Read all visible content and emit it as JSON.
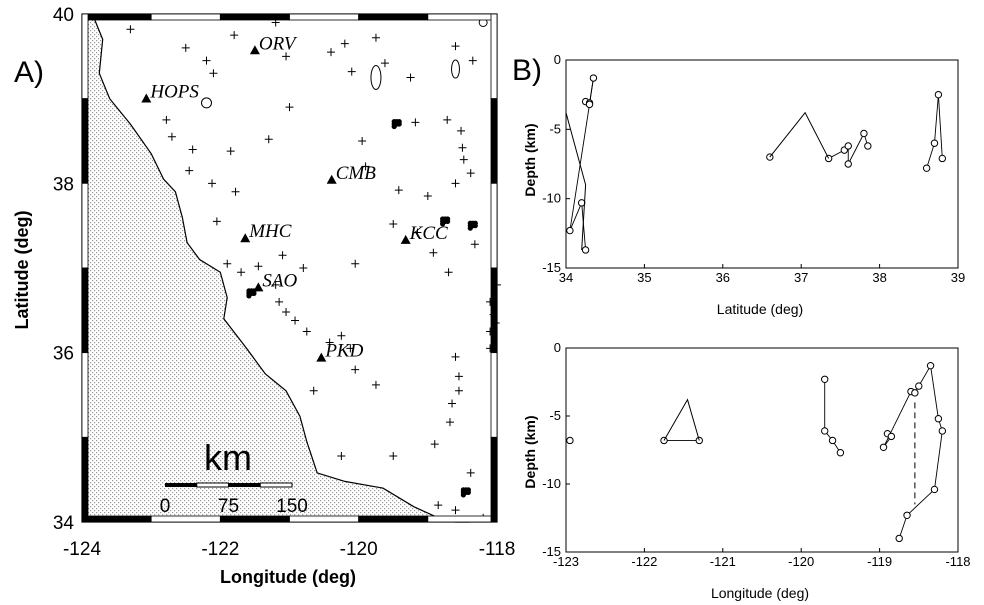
{
  "chart_data": [
    {
      "panel": "A)",
      "type": "scatter",
      "xlabel": "Longitude (deg)",
      "ylabel": "Latitude (deg)",
      "xlim": [
        -124,
        -118
      ],
      "ylim": [
        34,
        40
      ],
      "xticks": [
        "-124",
        "-122",
        "-120",
        "-118"
      ],
      "yticks": [
        "34",
        "36",
        "38",
        "40"
      ],
      "stations": [
        {
          "name": "ORV",
          "lon": -121.5,
          "lat": 39.56
        },
        {
          "name": "HOPS",
          "lon": -123.07,
          "lat": 38.99
        },
        {
          "name": "CMB",
          "lon": -120.39,
          "lat": 38.03
        },
        {
          "name": "MHC",
          "lon": -121.64,
          "lat": 37.34
        },
        {
          "name": "KCC",
          "lon": -119.32,
          "lat": 37.32
        },
        {
          "name": "SAO",
          "lon": -121.45,
          "lat": 36.76
        },
        {
          "name": "PKD",
          "lon": -120.54,
          "lat": 35.93
        }
      ],
      "scale_bar": {
        "title": "km",
        "labels": [
          "0",
          "75",
          "150"
        ]
      },
      "events": [
        [
          -123.3,
          39.82
        ],
        [
          -122.5,
          39.6
        ],
        [
          -122.2,
          39.45
        ],
        [
          -122.1,
          39.3
        ],
        [
          -121.8,
          39.75
        ],
        [
          -121.2,
          39.9
        ],
        [
          -121.05,
          39.5
        ],
        [
          -120.4,
          39.55
        ],
        [
          -120.2,
          39.65
        ],
        [
          -119.75,
          39.72
        ],
        [
          -120.1,
          39.32
        ],
        [
          -119.62,
          39.42
        ],
        [
          -119.25,
          39.25
        ],
        [
          -118.6,
          39.62
        ],
        [
          -118.35,
          39.45
        ],
        [
          -119.18,
          38.72
        ],
        [
          -118.72,
          38.75
        ],
        [
          -118.52,
          38.62
        ],
        [
          -118.5,
          38.42
        ],
        [
          -118.48,
          38.28
        ],
        [
          -118.6,
          38.0
        ],
        [
          -118.38,
          38.12
        ],
        [
          -119.42,
          37.92
        ],
        [
          -119.0,
          37.85
        ],
        [
          -119.5,
          37.52
        ],
        [
          -119.15,
          37.42
        ],
        [
          -118.92,
          37.18
        ],
        [
          -118.7,
          36.95
        ],
        [
          -118.32,
          37.28
        ],
        [
          -118.1,
          36.6
        ],
        [
          -118.05,
          36.45
        ],
        [
          -118.1,
          36.25
        ],
        [
          -118.1,
          36.05
        ],
        [
          -118.6,
          35.95
        ],
        [
          -118.55,
          35.72
        ],
        [
          -118.55,
          35.55
        ],
        [
          -118.65,
          35.4
        ],
        [
          -118.68,
          35.18
        ],
        [
          -118.9,
          34.92
        ],
        [
          -119.5,
          34.78
        ],
        [
          -118.38,
          34.58
        ],
        [
          -119.75,
          35.62
        ],
        [
          -120.05,
          35.8
        ],
        [
          -120.25,
          36.2
        ],
        [
          -120.05,
          37.05
        ],
        [
          -120.8,
          37.0
        ],
        [
          -121.1,
          37.15
        ],
        [
          -122.78,
          38.75
        ],
        [
          -122.7,
          38.55
        ],
        [
          -122.4,
          38.4
        ],
        [
          -122.45,
          38.15
        ],
        [
          -121.85,
          38.38
        ],
        [
          -122.12,
          38.0
        ],
        [
          -121.78,
          37.9
        ],
        [
          -122.05,
          37.55
        ],
        [
          -121.9,
          37.05
        ],
        [
          -121.7,
          36.95
        ],
        [
          -121.45,
          37.02
        ],
        [
          -121.2,
          36.8
        ],
        [
          -121.15,
          36.6
        ],
        [
          -121.05,
          36.48
        ],
        [
          -120.92,
          36.38
        ],
        [
          -120.75,
          36.25
        ],
        [
          -120.42,
          36.12
        ],
        [
          -120.12,
          36.05
        ],
        [
          -120.65,
          35.55
        ],
        [
          -120.25,
          34.78
        ],
        [
          -118.85,
          34.2
        ],
        [
          -118.6,
          34.14
        ],
        [
          -118.2,
          34.05
        ],
        [
          -118.0,
          36.8
        ],
        [
          -118.02,
          36.35
        ],
        [
          -121.0,
          38.9
        ],
        [
          -121.3,
          38.52
        ],
        [
          -119.95,
          38.5
        ],
        [
          -119.9,
          38.2
        ]
      ]
    },
    {
      "panel": "B)",
      "type": "scatter",
      "xlabel": "Latitude (deg)",
      "ylabel": "Depth (km)",
      "xlim": [
        34,
        39
      ],
      "ylim": [
        -15,
        0
      ],
      "xticks": [
        "34",
        "35",
        "36",
        "37",
        "38",
        "39"
      ],
      "yticks": [
        "0",
        "-5",
        "-10",
        "-15"
      ],
      "points": [
        [
          34.25,
          -3.0
        ],
        [
          34.3,
          -3.1
        ],
        [
          34.35,
          -1.3
        ],
        [
          34.3,
          -3.2
        ],
        [
          34.05,
          -12.3
        ],
        [
          34.2,
          -10.3
        ],
        [
          34.25,
          -13.7
        ],
        [
          36.6,
          -7.0
        ],
        [
          37.35,
          -7.1
        ],
        [
          37.55,
          -6.5
        ],
        [
          37.6,
          -6.2
        ],
        [
          37.6,
          -7.5
        ],
        [
          37.8,
          -5.3
        ],
        [
          37.85,
          -6.2
        ],
        [
          38.6,
          -7.8
        ],
        [
          38.7,
          -6.0
        ],
        [
          38.75,
          -2.5
        ],
        [
          38.8,
          -7.1
        ]
      ]
    },
    {
      "type": "scatter",
      "xlabel": "Longitude (deg)",
      "ylabel": "Depth (km)",
      "xlim": [
        -123,
        -118
      ],
      "ylim": [
        -15,
        0
      ],
      "xticks": [
        "-123",
        "-122",
        "-121",
        "-120",
        "-119",
        "-118"
      ],
      "yticks": [
        "0",
        "-5",
        "-10",
        "-15"
      ],
      "points": [
        [
          -122.95,
          -6.8
        ],
        [
          -121.75,
          -6.8
        ],
        [
          -121.3,
          -6.8
        ],
        [
          -119.7,
          -2.3
        ],
        [
          -119.7,
          -6.1
        ],
        [
          -119.6,
          -6.8
        ],
        [
          -119.5,
          -7.7
        ],
        [
          -118.9,
          -6.3
        ],
        [
          -118.85,
          -6.5
        ],
        [
          -118.95,
          -7.3
        ],
        [
          -118.6,
          -3.2
        ],
        [
          -118.55,
          -3.3
        ],
        [
          -118.5,
          -2.8
        ],
        [
          -118.35,
          -1.3
        ],
        [
          -118.25,
          -5.2
        ],
        [
          -118.2,
          -6.1
        ],
        [
          -118.3,
          -10.4
        ],
        [
          -118.65,
          -12.3
        ],
        [
          -118.75,
          -14.0
        ]
      ]
    }
  ]
}
